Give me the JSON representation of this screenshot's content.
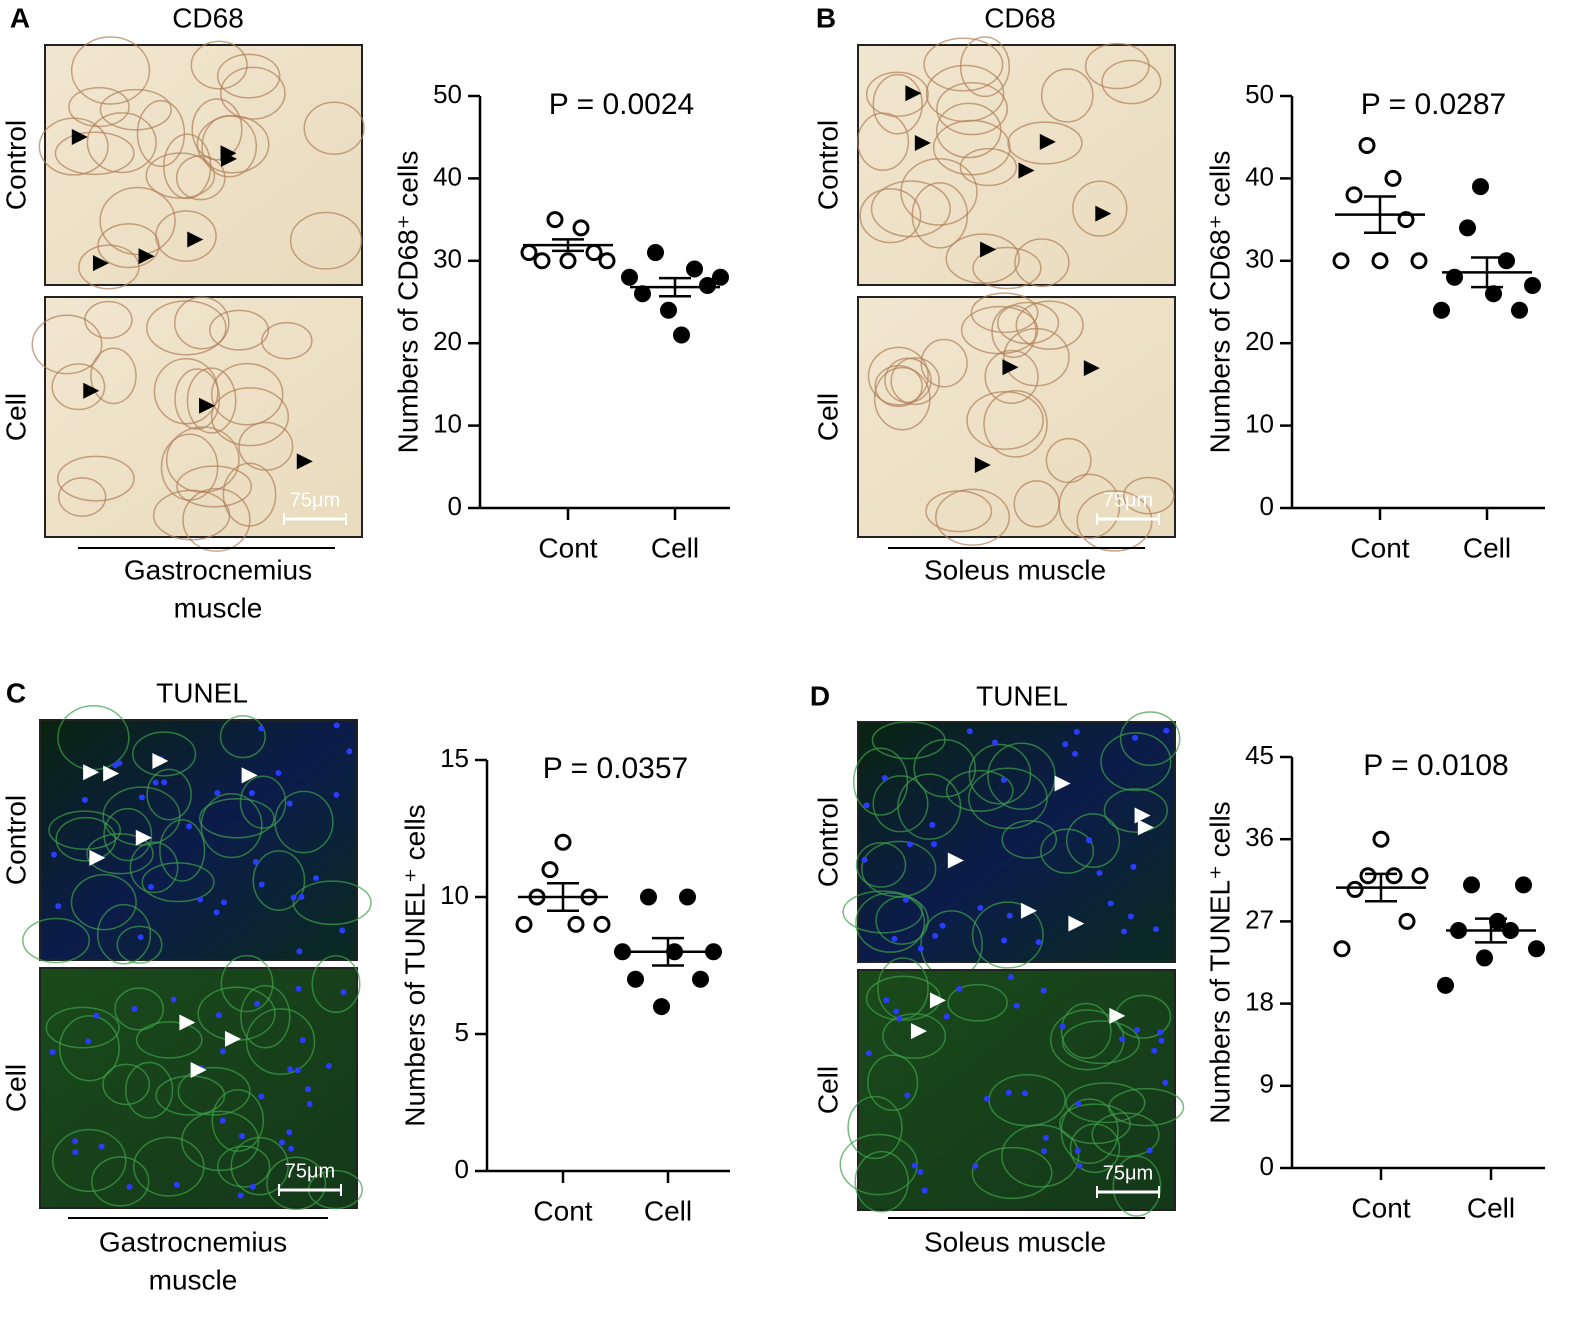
{
  "panels": [
    {
      "letter": "A",
      "stain": "CD68",
      "rows": [
        "Control",
        "Cell"
      ],
      "scale": "75μm",
      "tissue": [
        "Gastrocnemius",
        "muscle"
      ]
    },
    {
      "letter": "B",
      "stain": "CD68",
      "rows": [
        "Control",
        "Cell"
      ],
      "scale": "75μm",
      "tissue": [
        "Soleus muscle"
      ]
    },
    {
      "letter": "C",
      "stain": "TUNEL",
      "rows": [
        "Control",
        "Cell"
      ],
      "scale": "75μm",
      "tissue": [
        "Gastrocnemius",
        "muscle"
      ]
    },
    {
      "letter": "D",
      "stain": "TUNEL",
      "rows": [
        "Control",
        "Cell"
      ],
      "scale": "75μm",
      "tissue": [
        "Soleus muscle"
      ]
    }
  ],
  "chart_data": [
    {
      "type": "dot",
      "annotation": "P = 0.0024",
      "ylabel": "Numbers of CD68⁺ cells",
      "categories": [
        "Cont",
        "Cell"
      ],
      "color": "#000000",
      "groups": [
        {
          "marker": "open",
          "values": [
            31,
            30,
            35,
            30,
            34,
            31,
            30
          ],
          "mean": 31.9,
          "sem": 0.7
        },
        {
          "marker": "filled",
          "values": [
            28,
            26,
            31,
            24,
            21,
            29,
            27,
            28
          ],
          "mean": 26.8,
          "sem": 1.1
        }
      ],
      "ylim": [
        0,
        50
      ],
      "yticks": [
        0,
        10,
        20,
        30,
        40,
        50
      ]
    },
    {
      "type": "dot",
      "annotation": "P = 0.0287",
      "ylabel": "Numbers of CD68⁺ cells",
      "categories": [
        "Cont",
        "Cell"
      ],
      "color": "#000000",
      "groups": [
        {
          "marker": "open",
          "values": [
            30,
            38,
            44,
            30,
            40,
            35,
            30
          ],
          "mean": 35.6,
          "sem": 2.2
        },
        {
          "marker": "filled",
          "values": [
            24,
            28,
            34,
            39,
            26,
            30,
            24,
            27
          ],
          "mean": 28.6,
          "sem": 1.8
        }
      ],
      "ylim": [
        0,
        50
      ],
      "yticks": [
        0,
        10,
        20,
        30,
        40,
        50
      ]
    },
    {
      "type": "dot",
      "annotation": "P = 0.0357",
      "ylabel": "Numbers of TUNEL⁺ cells",
      "categories": [
        "Cont",
        "Cell"
      ],
      "color": "#000000",
      "groups": [
        {
          "marker": "open",
          "values": [
            9,
            10,
            11,
            12,
            9,
            10,
            9
          ],
          "mean": 10,
          "sem": 0.5
        },
        {
          "marker": "filled",
          "values": [
            8,
            7,
            10,
            6,
            8,
            10,
            7,
            8
          ],
          "mean": 8,
          "sem": 0.5
        }
      ],
      "ylim": [
        0,
        15
      ],
      "yticks": [
        0,
        5,
        10,
        15
      ]
    },
    {
      "type": "dot",
      "annotation": "P = 0.0108",
      "ylabel": "Numbers of TUNEL⁺ cells",
      "categories": [
        "Cont",
        "Cell"
      ],
      "color": "#000000",
      "groups": [
        {
          "marker": "open",
          "values": [
            24,
            30.5,
            32,
            36,
            32,
            27,
            32
          ],
          "mean": 30.7,
          "sem": 1.5
        },
        {
          "marker": "filled",
          "values": [
            20,
            26,
            31,
            23,
            27,
            26,
            31,
            24
          ],
          "mean": 26,
          "sem": 1.3
        }
      ],
      "ylim": [
        0,
        45
      ],
      "yticks": [
        0,
        9,
        18,
        27,
        36,
        45
      ]
    }
  ]
}
